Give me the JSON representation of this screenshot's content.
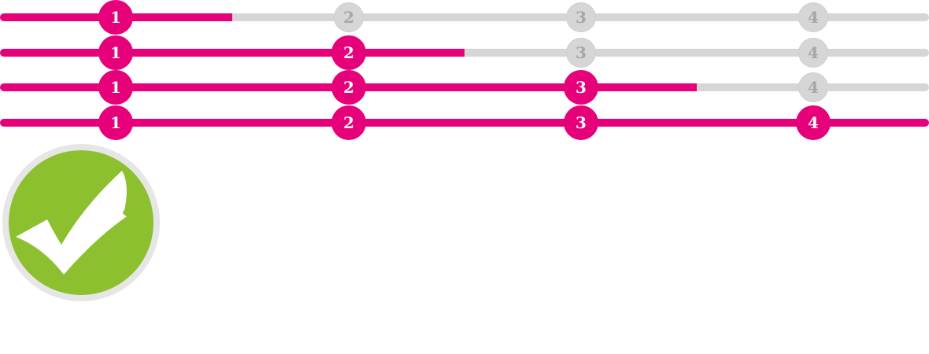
{
  "theme": {
    "accent": "#e6007a",
    "inactive": "#d6d6d6",
    "inactive_text": "#a6a6a6",
    "success": "#8dc02f"
  },
  "steppers": [
    {
      "progress": 0.25,
      "steps": [
        {
          "label": "1",
          "state": "done"
        },
        {
          "label": "2",
          "state": "todo"
        },
        {
          "label": "3",
          "state": "todo"
        },
        {
          "label": "4",
          "state": "todo"
        }
      ]
    },
    {
      "progress": 0.5,
      "steps": [
        {
          "label": "1",
          "state": "done"
        },
        {
          "label": "2",
          "state": "done"
        },
        {
          "label": "3",
          "state": "todo"
        },
        {
          "label": "4",
          "state": "todo"
        }
      ]
    },
    {
      "progress": 0.75,
      "steps": [
        {
          "label": "1",
          "state": "done"
        },
        {
          "label": "2",
          "state": "done"
        },
        {
          "label": "3",
          "state": "done"
        },
        {
          "label": "4",
          "state": "todo"
        }
      ]
    },
    {
      "progress": 1.0,
      "steps": [
        {
          "label": "1",
          "state": "done"
        },
        {
          "label": "2",
          "state": "done"
        },
        {
          "label": "3",
          "state": "done"
        },
        {
          "label": "4",
          "state": "done"
        }
      ]
    }
  ],
  "completion_badge": {
    "icon": "check-circle-icon"
  }
}
